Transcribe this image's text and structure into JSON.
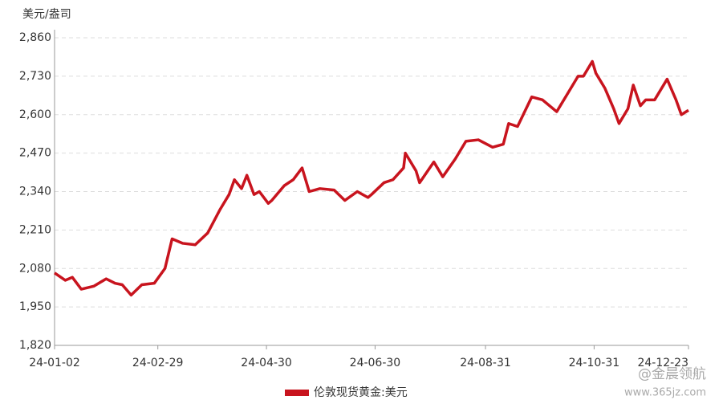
{
  "chart_data": {
    "type": "line",
    "y_label": "美元/盎司",
    "xlim": [
      "24-01-02",
      "24-12-23"
    ],
    "xticks": [
      "24-01-02",
      "24-02-29",
      "24-04-30",
      "24-06-30",
      "24-08-31",
      "24-10-31",
      "24-12-23"
    ],
    "ylim": [
      1820,
      2860
    ],
    "yticks": [
      {
        "value": 1820,
        "label": "1,820"
      },
      {
        "value": 1950,
        "label": "1,950"
      },
      {
        "value": 2080,
        "label": "2,080"
      },
      {
        "value": 2210,
        "label": "2,210"
      },
      {
        "value": 2340,
        "label": "2,340"
      },
      {
        "value": 2470,
        "label": "2,470"
      },
      {
        "value": 2600,
        "label": "2,600"
      },
      {
        "value": 2730,
        "label": "2,730"
      },
      {
        "value": 2860,
        "label": "2,860"
      }
    ],
    "grid": true,
    "legend": "bottom",
    "x": [
      "24-01-02",
      "24-01-08",
      "24-01-12",
      "24-01-17",
      "24-01-24",
      "24-01-31",
      "24-02-05",
      "24-02-09",
      "24-02-14",
      "24-02-20",
      "24-02-27",
      "24-03-04",
      "24-03-08",
      "24-03-14",
      "24-03-21",
      "24-03-28",
      "24-04-04",
      "24-04-09",
      "24-04-12",
      "24-04-16",
      "24-04-19",
      "24-04-23",
      "24-04-26",
      "24-05-01",
      "24-05-03",
      "24-05-10",
      "24-05-15",
      "24-05-20",
      "24-05-24",
      "24-05-30",
      "24-06-07",
      "24-06-13",
      "24-06-20",
      "24-06-26",
      "24-06-28",
      "24-07-05",
      "24-07-10",
      "24-07-16",
      "24-07-17",
      "24-07-23",
      "24-07-25",
      "24-08-02",
      "24-08-07",
      "24-08-14",
      "24-08-20",
      "24-08-27",
      "24-09-04",
      "24-09-10",
      "24-09-13",
      "24-09-18",
      "24-09-26",
      "24-10-02",
      "24-10-10",
      "24-10-16",
      "24-10-22",
      "24-10-25",
      "24-10-30",
      "24-11-01",
      "24-11-06",
      "24-11-11",
      "24-11-14",
      "24-11-19",
      "24-11-22",
      "24-11-26",
      "24-11-29",
      "24-12-04",
      "24-12-11",
      "24-12-16",
      "24-12-19",
      "24-12-23"
    ],
    "series": [
      {
        "name": "伦敦现货黄金:美元",
        "color": "#c8141e",
        "values": [
          2065,
          2040,
          2050,
          2010,
          2020,
          2045,
          2030,
          2025,
          1990,
          2025,
          2030,
          2080,
          2180,
          2165,
          2160,
          2200,
          2280,
          2330,
          2380,
          2350,
          2395,
          2330,
          2340,
          2300,
          2310,
          2360,
          2380,
          2420,
          2340,
          2350,
          2345,
          2310,
          2340,
          2320,
          2330,
          2370,
          2380,
          2420,
          2470,
          2410,
          2370,
          2440,
          2390,
          2450,
          2510,
          2515,
          2490,
          2500,
          2570,
          2560,
          2660,
          2650,
          2610,
          2670,
          2730,
          2730,
          2780,
          2740,
          2690,
          2620,
          2570,
          2620,
          2700,
          2630,
          2650,
          2650,
          2720,
          2650,
          2600,
          2615
        ]
      }
    ],
    "watermark": [
      "@金晨领航",
      "www.365jz.com"
    ]
  }
}
